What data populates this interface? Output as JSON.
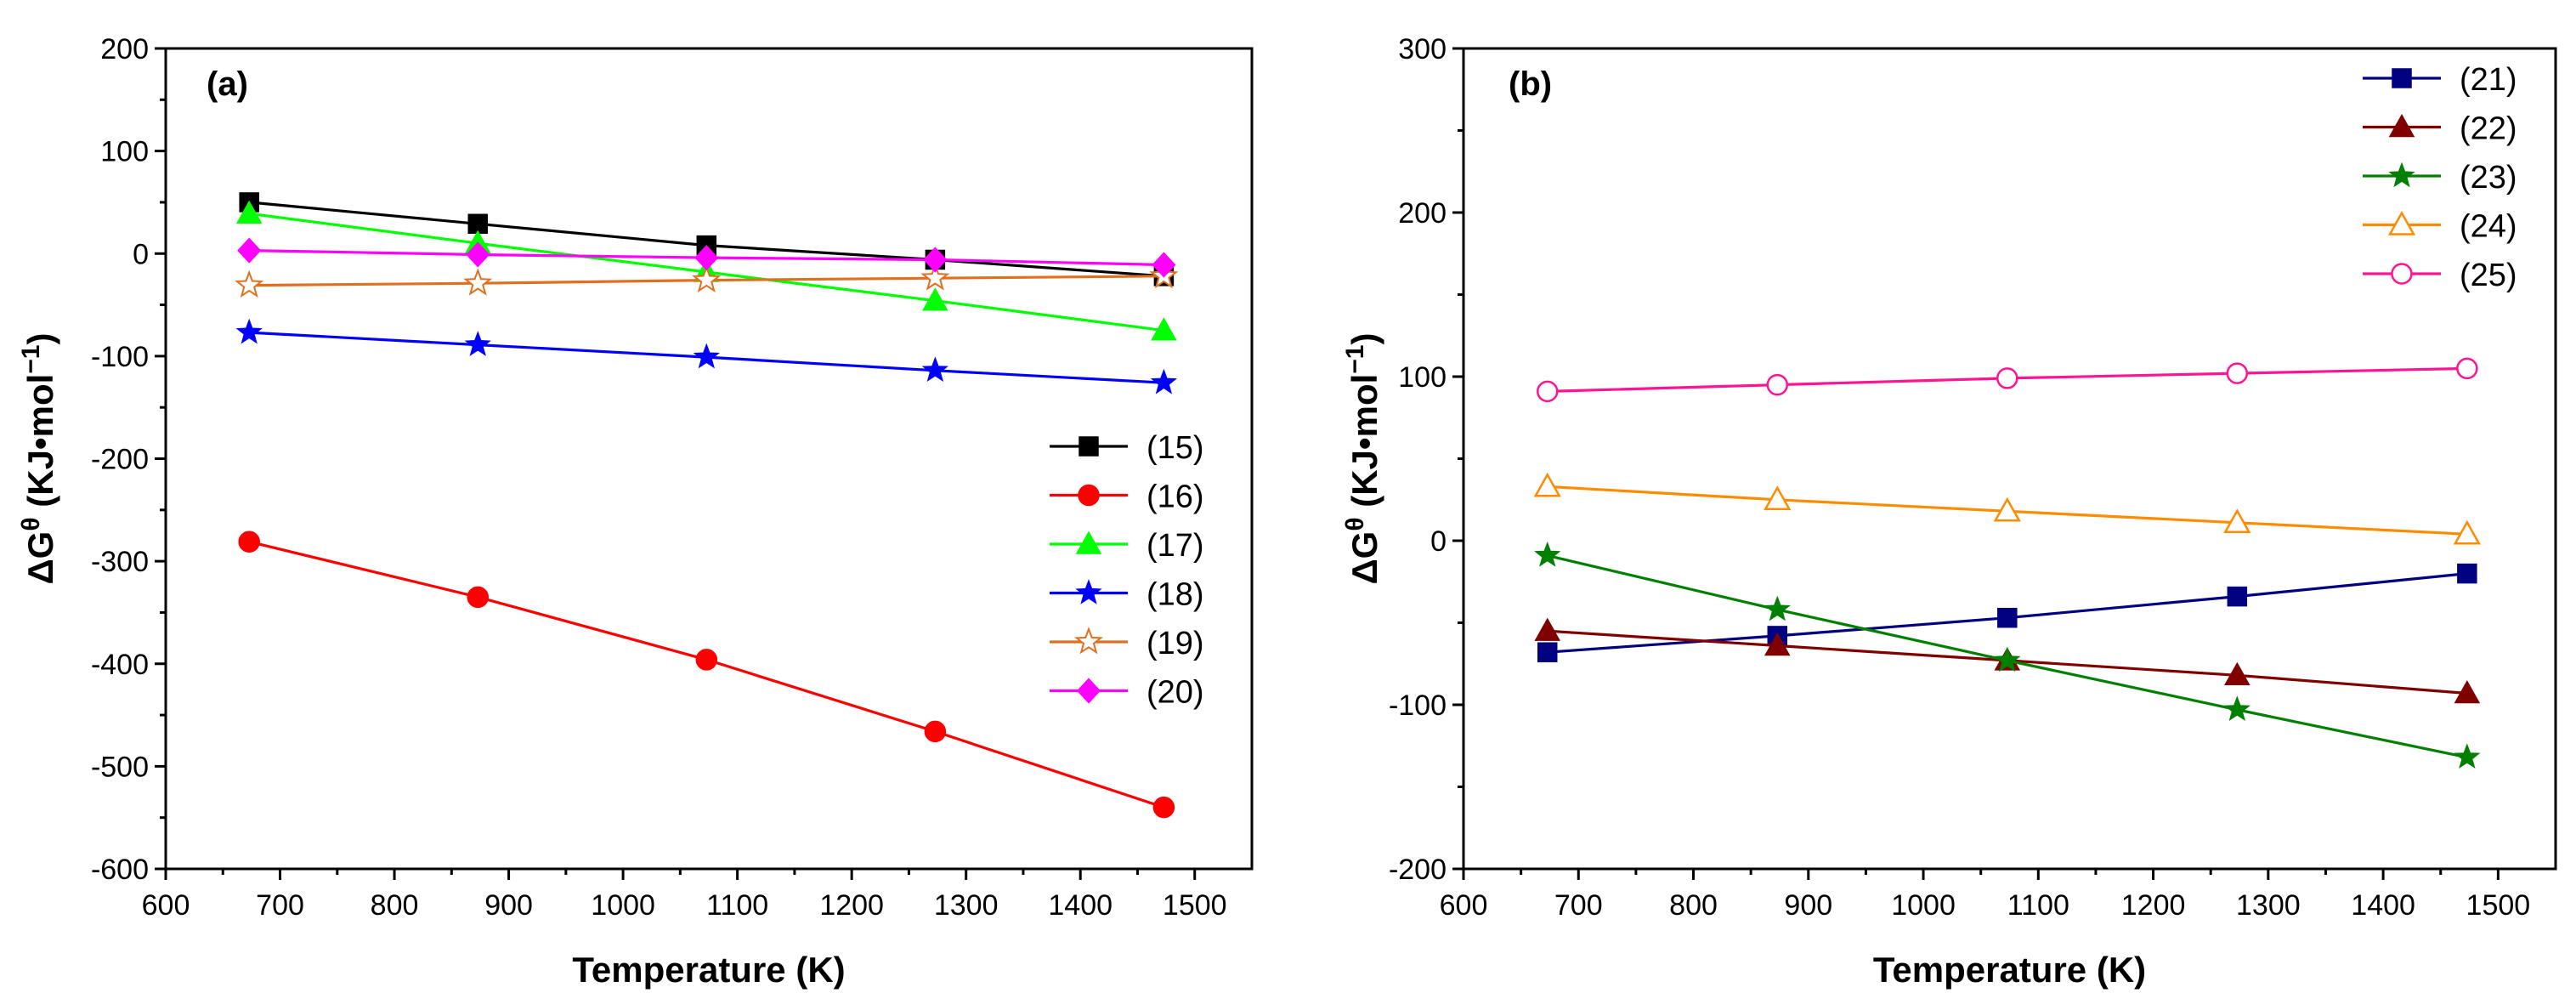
{
  "chart_data": [
    {
      "panel": "a",
      "panel_label": "(a)",
      "type": "line",
      "xlabel": "Temperature (K)",
      "ylabel": {
        "prefix": "ΔG",
        "sup": "θ",
        "units": " (KJ•mol",
        "units_sup": "−1",
        "close": ")"
      },
      "xlim": [
        600,
        1550
      ],
      "ylim": [
        -600,
        200
      ],
      "xticks": [
        600,
        700,
        800,
        900,
        1000,
        1100,
        1200,
        1300,
        1400,
        1500
      ],
      "yticks": [
        -600,
        -500,
        -400,
        -300,
        -200,
        -100,
        0,
        100,
        200
      ],
      "x": [
        673,
        873,
        1073,
        1273,
        1473
      ],
      "legend_position": "center-right",
      "series": [
        {
          "name": "(15)",
          "color": "#000000",
          "marker": "square",
          "filled": true,
          "values": [
            50,
            29,
            8,
            -6,
            -22
          ]
        },
        {
          "name": "(16)",
          "color": "#ff0000",
          "marker": "circle",
          "filled": true,
          "values": [
            -281,
            -335,
            -396,
            -466,
            -540
          ]
        },
        {
          "name": "(17)",
          "color": "#00ff00",
          "marker": "triangle",
          "filled": true,
          "values": [
            39,
            10,
            -18,
            -46,
            -75
          ]
        },
        {
          "name": "(18)",
          "color": "#0000ff",
          "marker": "star",
          "filled": true,
          "values": [
            -77,
            -89,
            -101,
            -114,
            -126
          ]
        },
        {
          "name": "(19)",
          "color": "#e07020",
          "marker": "star",
          "filled": false,
          "values": [
            -31,
            -29,
            -26,
            -24,
            -22
          ]
        },
        {
          "name": "(20)",
          "color": "#ff00ff",
          "marker": "diamond",
          "filled": true,
          "values": [
            3,
            -1,
            -4,
            -6,
            -11
          ]
        }
      ]
    },
    {
      "panel": "b",
      "panel_label": "(b)",
      "type": "line",
      "xlabel": "Temperature (K)",
      "ylabel": {
        "prefix": "ΔG",
        "sup": "θ",
        "units": " (KJ•mol",
        "units_sup": "−1",
        "close": ")"
      },
      "xlim": [
        600,
        1550
      ],
      "ylim": [
        -200,
        300
      ],
      "xticks": [
        600,
        700,
        800,
        900,
        1000,
        1100,
        1200,
        1300,
        1400,
        1500
      ],
      "yticks": [
        -200,
        -100,
        0,
        100,
        200,
        300
      ],
      "x": [
        673,
        873,
        1073,
        1273,
        1473
      ],
      "legend_position": "top-right",
      "series": [
        {
          "name": "(21)",
          "color": "#000080",
          "marker": "square",
          "filled": true,
          "values": [
            -68,
            -58,
            -47,
            -34,
            -20
          ]
        },
        {
          "name": "(22)",
          "color": "#800000",
          "marker": "triangle",
          "filled": true,
          "values": [
            -55,
            -64,
            -73,
            -82,
            -93
          ]
        },
        {
          "name": "(23)",
          "color": "#008000",
          "marker": "star",
          "filled": true,
          "values": [
            -9,
            -42,
            -73,
            -103,
            -132
          ]
        },
        {
          "name": "(24)",
          "color": "#ff8c00",
          "marker": "triangle",
          "filled": false,
          "values": [
            33,
            25,
            18,
            11,
            4
          ]
        },
        {
          "name": "(25)",
          "color": "#ff1493",
          "marker": "circle",
          "filled": false,
          "values": [
            91,
            95,
            99,
            102,
            105
          ]
        }
      ]
    }
  ]
}
